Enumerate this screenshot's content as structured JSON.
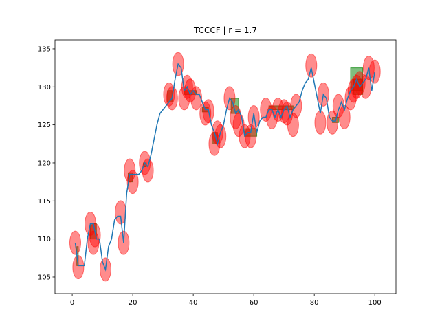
{
  "chart_data": {
    "type": "line",
    "title": "TCCCF | r = 1.7",
    "xlim": [
      -5.7,
      107
    ],
    "ylim": [
      102.83,
      136.17
    ],
    "xticks": [
      0,
      20,
      40,
      60,
      80,
      100
    ],
    "yticks": [
      105,
      110,
      115,
      120,
      125,
      130,
      135
    ],
    "series": [
      {
        "color": "#1f77b4",
        "x": [
          1,
          2,
          3,
          4,
          5,
          6,
          7,
          8,
          9,
          10,
          11,
          12,
          13,
          14,
          15,
          16,
          17,
          18,
          19,
          20,
          21,
          22,
          23,
          24,
          25,
          26,
          27,
          28,
          29,
          30,
          31,
          32,
          33,
          34,
          35,
          36,
          37,
          38,
          39,
          40,
          41,
          42,
          43,
          44,
          45,
          46,
          47,
          48,
          49,
          50,
          51,
          52,
          53,
          54,
          55,
          56,
          57,
          58,
          59,
          60,
          61,
          62,
          63,
          64,
          65,
          66,
          67,
          68,
          69,
          70,
          71,
          72,
          73,
          74,
          75,
          76,
          77,
          78,
          79,
          80,
          81,
          82,
          83,
          84,
          85,
          86,
          87,
          88,
          89,
          90,
          91,
          92,
          93,
          94,
          95,
          96,
          97,
          98,
          99,
          100
        ],
        "values": [
          109.5,
          106.5,
          106.5,
          106.5,
          110,
          112,
          112,
          110,
          110,
          107,
          106,
          109,
          110,
          112.5,
          113,
          113,
          109.5,
          116,
          118.5,
          118.5,
          118.5,
          118.5,
          119,
          120,
          119.5,
          121,
          123,
          125,
          126.5,
          127,
          127.5,
          128,
          128.5,
          131,
          133,
          132.5,
          129.5,
          130,
          129,
          129.5,
          129,
          129,
          128,
          127,
          127,
          125,
          124,
          122.5,
          124,
          125,
          127,
          128.5,
          128,
          126.5,
          127,
          126,
          123.5,
          124,
          124,
          126.5,
          124,
          125.5,
          126,
          126,
          127,
          127,
          126,
          127,
          126,
          127,
          127.5,
          126,
          127,
          127.5,
          128,
          129.5,
          130.5,
          131,
          132.5,
          130.5,
          128.5,
          126.5,
          129,
          128.5,
          126,
          125.5,
          125.5,
          127,
          128,
          127,
          128.5,
          129.5,
          130,
          131,
          130,
          130.5,
          131,
          132.5,
          129.5,
          132
        ]
      }
    ],
    "markers": {
      "color": "#ff0000",
      "x": [
        1,
        2,
        6,
        7,
        7.5,
        11,
        16,
        17,
        19,
        20,
        24,
        25,
        32,
        33,
        35,
        37,
        38,
        39,
        41,
        44,
        45,
        47,
        48,
        49,
        52,
        54,
        55,
        57,
        59,
        60,
        64,
        66,
        68,
        70,
        71,
        73,
        74,
        79,
        82,
        83,
        86,
        88,
        90,
        92,
        93,
        94,
        95,
        97,
        98,
        100
      ],
      "y": [
        109.5,
        106.3,
        112,
        109.5,
        110.5,
        106,
        113.5,
        109.5,
        119,
        117.5,
        120,
        119,
        129,
        128.5,
        133,
        128.5,
        130,
        129.5,
        128.5,
        126.5,
        126.8,
        122.5,
        124,
        123.5,
        128.5,
        126,
        125,
        123.5,
        123.5,
        126,
        127,
        126,
        127,
        126.8,
        126.5,
        125,
        127.5,
        132.8,
        125.3,
        129,
        125.3,
        127.5,
        126,
        128.5,
        129.5,
        130,
        130.5,
        130,
        132.5,
        132
      ]
    },
    "boxes": {
      "color": "#008000",
      "x0": [
        1.5,
        6,
        18.5,
        23.5,
        31.5,
        37,
        43,
        46.5,
        52.5,
        57,
        65,
        86,
        92,
        93
      ],
      "x1": [
        2,
        8,
        20,
        24.5,
        33,
        41,
        45,
        48,
        55,
        61,
        73,
        88,
        96,
        96
      ],
      "y0": [
        106.5,
        110,
        117.5,
        119.5,
        128,
        129,
        126.7,
        122.5,
        126.5,
        123.5,
        127,
        125.3,
        129.5,
        129
      ],
      "y1": [
        109,
        112,
        118.7,
        120,
        129.5,
        129.5,
        127.3,
        124,
        128.5,
        124.5,
        127.5,
        126,
        132.5,
        131
      ]
    }
  }
}
